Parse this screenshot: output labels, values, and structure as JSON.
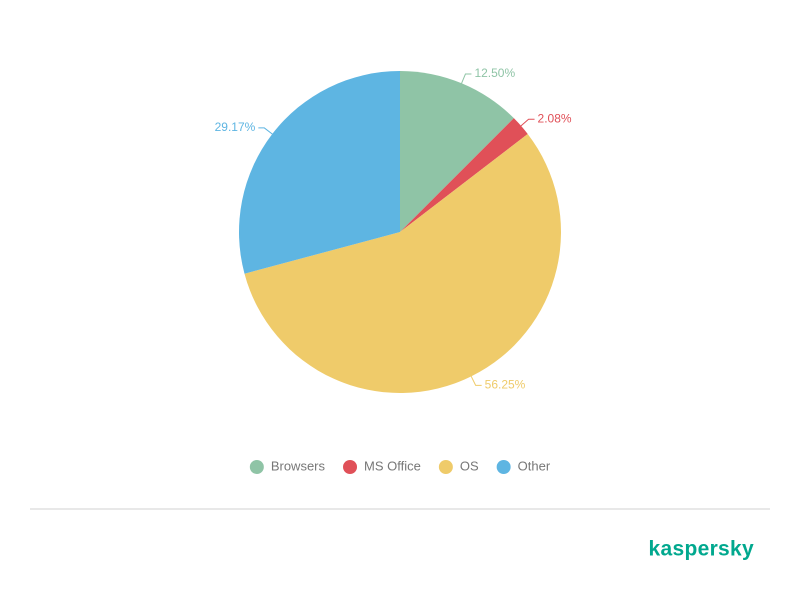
{
  "chart_data": {
    "type": "pie",
    "categories": [
      "Browsers",
      "MS Office",
      "OS",
      "Other"
    ],
    "values": [
      12.5,
      2.08,
      56.25,
      29.17
    ],
    "value_labels": [
      "12.50%",
      "2.08%",
      "56.25%",
      "29.17%"
    ],
    "colors": [
      "#8fc4a6",
      "#e05058",
      "#efcb6a",
      "#5eb5e2"
    ],
    "legend": "bottom"
  },
  "brand": "kaspersky"
}
